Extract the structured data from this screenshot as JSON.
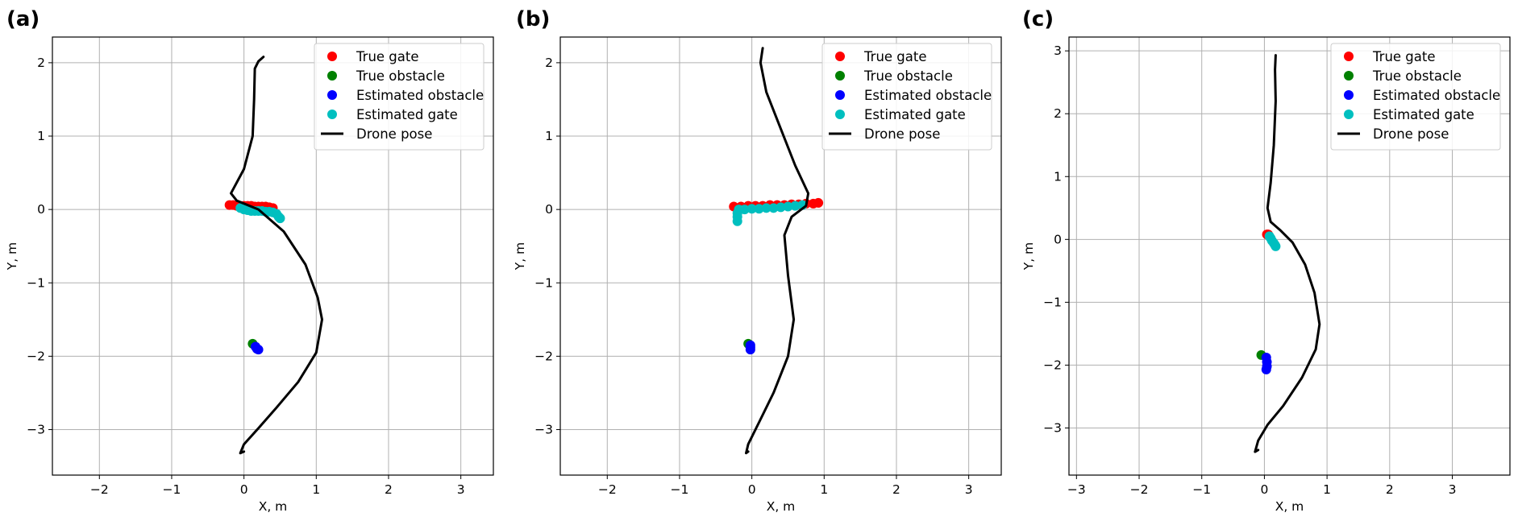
{
  "chart_data": [
    {
      "type": "scatter",
      "panel_label": "(a)",
      "xlabel": "X, m",
      "ylabel": "Y, m",
      "xlim": [
        -2.65,
        3.45
      ],
      "ylim": [
        -3.62,
        2.35
      ],
      "xticks": [
        -2,
        -1,
        0,
        1,
        2,
        3
      ],
      "yticks": [
        -3,
        -2,
        -1,
        0,
        1,
        2
      ],
      "grid": true,
      "legend_position": "top-right",
      "series": [
        {
          "name": "True gate",
          "kind": "points",
          "color": "#ff0000",
          "points": [
            [
              -0.2,
              0.06
            ],
            [
              -0.15,
              0.06
            ],
            [
              -0.1,
              0.05
            ],
            [
              -0.05,
              0.05
            ],
            [
              0.0,
              0.05
            ],
            [
              0.05,
              0.05
            ],
            [
              0.1,
              0.05
            ],
            [
              0.15,
              0.04
            ],
            [
              0.2,
              0.04
            ],
            [
              0.25,
              0.04
            ],
            [
              0.3,
              0.04
            ],
            [
              0.35,
              0.03
            ],
            [
              0.4,
              0.02
            ]
          ]
        },
        {
          "name": "True obstacle",
          "kind": "points",
          "color": "#008000",
          "points": [
            [
              0.12,
              -1.83
            ]
          ]
        },
        {
          "name": "Estimated obstacle",
          "kind": "points",
          "color": "#0000ff",
          "points": [
            [
              0.16,
              -1.87
            ],
            [
              0.18,
              -1.9
            ],
            [
              0.2,
              -1.91
            ]
          ]
        },
        {
          "name": "Estimated gate",
          "kind": "points",
          "color": "#00bfbf",
          "points": [
            [
              -0.05,
              0.02
            ],
            [
              0.0,
              0.0
            ],
            [
              0.05,
              -0.01
            ],
            [
              0.1,
              -0.02
            ],
            [
              0.15,
              -0.02
            ],
            [
              0.2,
              -0.02
            ],
            [
              0.25,
              -0.02
            ],
            [
              0.3,
              -0.03
            ],
            [
              0.35,
              -0.03
            ],
            [
              0.4,
              -0.04
            ],
            [
              0.45,
              -0.06
            ],
            [
              0.48,
              -0.1
            ],
            [
              0.5,
              -0.12
            ]
          ]
        },
        {
          "name": "Drone pose",
          "kind": "line",
          "color": "#000000",
          "points": [
            [
              0.27,
              2.08
            ],
            [
              0.2,
              2.02
            ],
            [
              0.15,
              1.92
            ],
            [
              0.14,
              1.5
            ],
            [
              0.12,
              1.0
            ],
            [
              0.0,
              0.55
            ],
            [
              -0.18,
              0.22
            ],
            [
              -0.1,
              0.12
            ],
            [
              0.2,
              0.0
            ],
            [
              0.55,
              -0.3
            ],
            [
              0.85,
              -0.75
            ],
            [
              1.02,
              -1.2
            ],
            [
              1.08,
              -1.5
            ],
            [
              1.0,
              -1.95
            ],
            [
              0.75,
              -2.35
            ],
            [
              0.45,
              -2.7
            ],
            [
              0.2,
              -2.98
            ],
            [
              0.0,
              -3.2
            ],
            [
              -0.05,
              -3.32
            ],
            [
              0.0,
              -3.3
            ]
          ]
        }
      ]
    },
    {
      "type": "scatter",
      "panel_label": "(b)",
      "xlabel": "X, m",
      "ylabel": "Y, m",
      "xlim": [
        -2.65,
        3.45
      ],
      "ylim": [
        -3.62,
        2.35
      ],
      "xticks": [
        -2,
        -1,
        0,
        1,
        2,
        3
      ],
      "yticks": [
        -3,
        -2,
        -1,
        0,
        1,
        2
      ],
      "grid": true,
      "legend_position": "top-right",
      "series": [
        {
          "name": "True gate",
          "kind": "points",
          "color": "#ff0000",
          "points": [
            [
              -0.25,
              0.04
            ],
            [
              -0.15,
              0.04
            ],
            [
              -0.05,
              0.05
            ],
            [
              0.05,
              0.05
            ],
            [
              0.15,
              0.05
            ],
            [
              0.25,
              0.06
            ],
            [
              0.35,
              0.06
            ],
            [
              0.45,
              0.06
            ],
            [
              0.55,
              0.07
            ],
            [
              0.65,
              0.07
            ],
            [
              0.75,
              0.08
            ],
            [
              0.85,
              0.08
            ],
            [
              0.92,
              0.09
            ]
          ]
        },
        {
          "name": "True obstacle",
          "kind": "points",
          "color": "#008000",
          "points": [
            [
              -0.05,
              -1.83
            ]
          ]
        },
        {
          "name": "Estimated obstacle",
          "kind": "points",
          "color": "#0000ff",
          "points": [
            [
              -0.02,
              -1.85
            ],
            [
              -0.02,
              -1.88
            ],
            [
              -0.02,
              -1.91
            ]
          ]
        },
        {
          "name": "Estimated gate",
          "kind": "points",
          "color": "#00bfbf",
          "points": [
            [
              -0.18,
              0.0
            ],
            [
              -0.1,
              0.0
            ],
            [
              0.0,
              0.01
            ],
            [
              0.1,
              0.01
            ],
            [
              0.2,
              0.02
            ],
            [
              0.3,
              0.02
            ],
            [
              0.4,
              0.03
            ],
            [
              0.5,
              0.04
            ],
            [
              0.6,
              0.05
            ],
            [
              0.7,
              0.06
            ],
            [
              -0.2,
              -0.05
            ],
            [
              -0.2,
              -0.1
            ],
            [
              -0.2,
              -0.16
            ]
          ]
        },
        {
          "name": "Drone pose",
          "kind": "line",
          "color": "#000000",
          "points": [
            [
              0.15,
              2.2
            ],
            [
              0.12,
              2.0
            ],
            [
              0.2,
              1.6
            ],
            [
              0.4,
              1.1
            ],
            [
              0.6,
              0.6
            ],
            [
              0.78,
              0.22
            ],
            [
              0.75,
              0.05
            ],
            [
              0.55,
              -0.1
            ],
            [
              0.45,
              -0.35
            ],
            [
              0.5,
              -0.9
            ],
            [
              0.58,
              -1.5
            ],
            [
              0.5,
              -2.0
            ],
            [
              0.3,
              -2.5
            ],
            [
              0.1,
              -2.9
            ],
            [
              -0.05,
              -3.2
            ],
            [
              -0.08,
              -3.32
            ],
            [
              -0.05,
              -3.3
            ]
          ]
        }
      ]
    },
    {
      "type": "scatter",
      "panel_label": "(c)",
      "xlabel": "X, m",
      "ylabel": "Y, m",
      "xlim": [
        -3.12,
        3.92
      ],
      "ylim": [
        -3.75,
        3.22
      ],
      "xticks": [
        -3,
        -2,
        -1,
        0,
        1,
        2,
        3
      ],
      "yticks": [
        -3,
        -2,
        -1,
        0,
        1,
        2,
        3
      ],
      "grid": true,
      "legend_position": "top-right",
      "series": [
        {
          "name": "True gate",
          "kind": "points",
          "color": "#ff0000",
          "points": [
            [
              0.04,
              0.08
            ],
            [
              0.06,
              0.08
            ]
          ]
        },
        {
          "name": "True obstacle",
          "kind": "points",
          "color": "#008000",
          "points": [
            [
              -0.05,
              -1.84
            ]
          ]
        },
        {
          "name": "Estimated obstacle",
          "kind": "points",
          "color": "#0000ff",
          "points": [
            [
              0.03,
              -1.88
            ],
            [
              0.04,
              -1.95
            ],
            [
              0.04,
              -2.02
            ],
            [
              0.03,
              -2.07
            ]
          ]
        },
        {
          "name": "Estimated gate",
          "kind": "points",
          "color": "#00bfbf",
          "points": [
            [
              0.08,
              0.05
            ],
            [
              0.1,
              0.02
            ],
            [
              0.12,
              -0.02
            ],
            [
              0.15,
              -0.06
            ],
            [
              0.17,
              -0.09
            ],
            [
              0.18,
              -0.11
            ]
          ]
        },
        {
          "name": "Drone pose",
          "kind": "line",
          "color": "#000000",
          "points": [
            [
              0.18,
              2.93
            ],
            [
              0.17,
              2.7
            ],
            [
              0.18,
              2.2
            ],
            [
              0.15,
              1.5
            ],
            [
              0.1,
              0.9
            ],
            [
              0.05,
              0.5
            ],
            [
              0.1,
              0.28
            ],
            [
              0.25,
              0.15
            ],
            [
              0.45,
              -0.05
            ],
            [
              0.65,
              -0.4
            ],
            [
              0.8,
              -0.85
            ],
            [
              0.88,
              -1.35
            ],
            [
              0.82,
              -1.75
            ],
            [
              0.6,
              -2.2
            ],
            [
              0.3,
              -2.65
            ],
            [
              0.05,
              -2.95
            ],
            [
              -0.1,
              -3.2
            ],
            [
              -0.15,
              -3.38
            ],
            [
              -0.1,
              -3.35
            ]
          ]
        }
      ]
    }
  ]
}
